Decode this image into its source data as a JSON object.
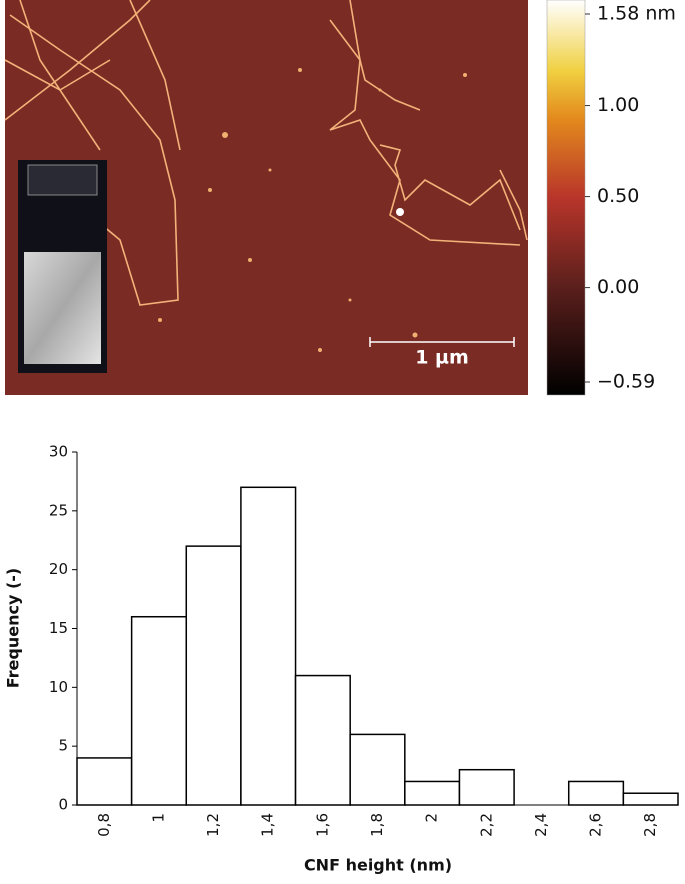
{
  "image": {
    "scale_bar": "1 µm",
    "colorbar": {
      "lim": [
        -0.59,
        1.58
      ],
      "ticks": [
        {
          "value": 1.58,
          "label": "1.58 nm"
        },
        {
          "value": 1,
          "label": "1.00"
        },
        {
          "value": 0.5,
          "label": "0.50"
        },
        {
          "value": 0,
          "label": "0.00"
        },
        {
          "value": -0.59,
          "label": "−0.59"
        }
      ]
    }
  },
  "chart_data": {
    "type": "bar",
    "xlabel": "CNF height (nm)",
    "ylabel": "Frequency (-)",
    "categories": [
      "0,8",
      "1",
      "1,2",
      "1,4",
      "1,6",
      "1,8",
      "2",
      "2,2",
      "2,4",
      "2,6",
      "2,8"
    ],
    "values": [
      4,
      16,
      22,
      27,
      11,
      6,
      2,
      3,
      0,
      2,
      1
    ],
    "color": "#ffffff",
    "edgecolor": "#000000",
    "ylim": [
      0,
      30
    ],
    "yticks": [
      0,
      5,
      10,
      15,
      20,
      25,
      30
    ],
    "grid": false
  }
}
